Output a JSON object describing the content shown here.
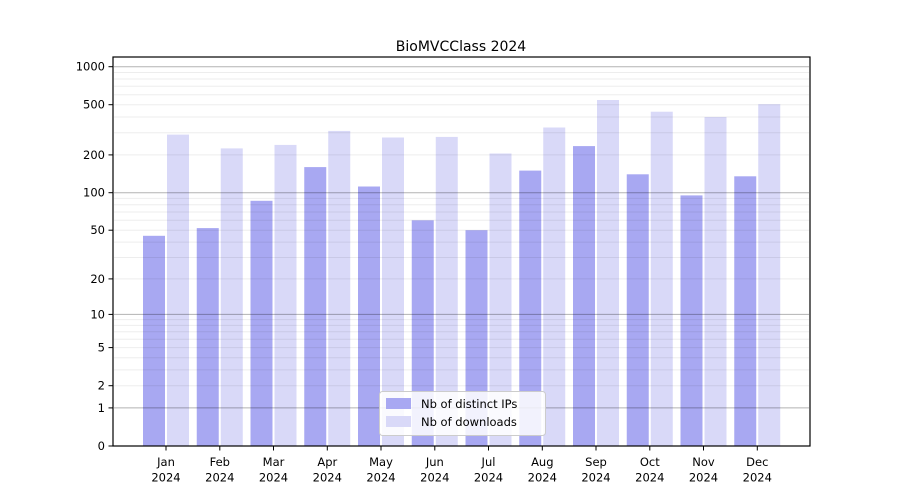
{
  "title": "BioMVCClass 2024",
  "chart_data": {
    "type": "bar",
    "title": "BioMVCClass 2024",
    "scale": "log1p",
    "categories": [
      "Jan 2024",
      "Feb 2024",
      "Mar 2024",
      "Apr 2024",
      "May 2024",
      "Jun 2024",
      "Jul 2024",
      "Aug 2024",
      "Sep 2024",
      "Oct 2024",
      "Nov 2024",
      "Dec 2024"
    ],
    "series": [
      {
        "name": "Nb of distinct IPs",
        "color": "#a8a8f2",
        "values": [
          45,
          52,
          86,
          160,
          112,
          60,
          50,
          150,
          235,
          140,
          95,
          135
        ]
      },
      {
        "name": "Nb of downloads",
        "color": "#d9d9f8",
        "values": [
          290,
          225,
          240,
          310,
          275,
          278,
          205,
          330,
          545,
          440,
          400,
          505
        ]
      }
    ],
    "y_ticks": [
      0,
      1,
      2,
      5,
      10,
      20,
      50,
      100,
      200,
      500,
      1000
    ],
    "ylim": [
      0,
      1195
    ],
    "xlabel": "",
    "ylabel": "",
    "grid": "horizontal, log minor + major lines",
    "legend_position": "lower center"
  },
  "colors": {
    "distinct_ips_bar": "#a8a8f2",
    "downloads_bar": "#d9d9f8",
    "major_gridline": "rgba(0,0,0,0.30)",
    "minor_gridline": "rgba(0,0,0,0.07)",
    "axis": "#000000",
    "legend_border": "#cccccc",
    "legend_background": "rgba(255,255,255,0.85)"
  }
}
